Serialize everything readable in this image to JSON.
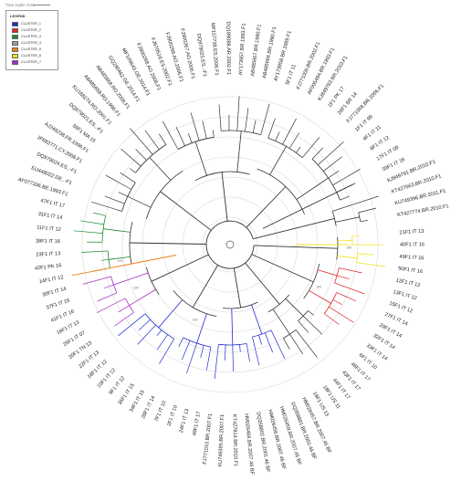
{
  "header": {
    "scale_label": "Tree scale: 0.01"
  },
  "legend": {
    "title": "LEGEND",
    "items": [
      {
        "label": "CLUSTER_1",
        "color": "#1f2ccf"
      },
      {
        "label": "CLUSTER_2",
        "color": "#e02424"
      },
      {
        "label": "CLUSTER_3",
        "color": "#1f8a2e"
      },
      {
        "label": "CLUSTER_4",
        "color": "#9a9a9a"
      },
      {
        "label": "CLUSTER_5",
        "color": "#f07f14"
      },
      {
        "label": "CLUSTER_6",
        "color": "#f2e21a"
      },
      {
        "label": "CLUSTER_7",
        "color": "#a72cc4"
      }
    ]
  },
  "tree": {
    "type": "circular-phylogeny",
    "label_orientation": "radial",
    "labels": [
      "21F1 IT 13",
      "40F1 IT 16",
      "49F1 IT 16",
      "50F1 IT 16",
      "12F1 IT 12",
      "13F1 IT 12",
      "15F1 IT 12",
      "27F1 IT 14",
      "29F1 IT 14",
      "32F1 IT 14",
      "33F1 IT 14",
      "6F1 IT 10",
      "46F1 IT 17",
      "43F1 IT 17",
      "44F1 IT 17",
      "18F1 US 11",
      "19F1 US 13",
      "HM026457.BR.2007.46 BF",
      "DQ358801.BR.2001.46 BF",
      "HM026459.BR.2007.46 BF",
      "HM026456.BR.2007.46 BF",
      "DQ358802.BR.2001.46 BF",
      "HM026458.BR.2007.46 BF",
      "KT427814.BR.2010.F1",
      "KU749395.BR.2007.F1",
      "FJ771010.BR.2007.F1",
      "48F1 IT 17",
      "24F1 IT 13",
      "2F1 IT 10",
      "7F1 IT 10",
      "28F1 IT 14",
      "34F1 IT 15",
      "35F1 IT 15",
      "9F1 IT 12",
      "10F1 IT 12",
      "18F1 IT 12",
      "22F1 IT 13",
      "20F1 TN 13",
      "25F1 IT 07",
      "16F1 IT 13",
      "41F1 IT 16",
      "37F1 IT 16",
      "30F1 IT 14",
      "14F1 IT 12",
      "42F1 PK 16",
      "23F1 IT 13",
      "38F1 IT 16",
      "11F1 IT 12",
      "31F1 IT 14",
      "47F1 IT 17",
      "AF077336.BE.1993.F1",
      "EU448022.DE..-F1",
      "DQ979024.ES..-F1",
      "JF682771.CY.2008.F1",
      "AJ249238.FR.1996.F1",
      "36F1 MA 15",
      "DQ979021.ES..-F1",
      "KU168274.RO.2001.F1",
      "AB485658.RO.1996.F1",
      "AB485668.RO.2008.F1",
      "GQ290462.GE.2014.F1",
      "MF109643.GE.2014.F1",
      "FJ900268.AO.2006.F1",
      "FJ670516.ES.2002.F1",
      "FJ900266.AO.2006.F1",
      "FJ900267.AO.2006.F1",
      "DQ979025.ES..-F1",
      "MF157738.ES.2006.F1",
      "DQ189088.AR.2002.F1",
      "AY173957.BR.1993.F1",
      "AB485667.BR.1990.F1",
      "AB485666.BR.1990.F1",
      "AY173958.BR.1989.F1",
      "5F1 IT 11",
      "FJ771006.BR.2002.F1",
      "AF005494.BR.1993.F1",
      "KJ849782.BR.2010.F1",
      "1F1 PK 17",
      "26F1 BR 14",
      "FJ771008.BR.2006.F1",
      "1F1 IT 99",
      "4F1 IT 11",
      "8F1 IT 12",
      "17F1 IT 09",
      "39F1 IT 16",
      "KJ849791.BR.2010.F1",
      "KT427663.BR.2010.F1",
      "KU749396.BR.2011.F1",
      "KT427774.BR.2010.F1"
    ],
    "bootstrap_values": [
      "100",
      "100",
      "100",
      "100",
      "100"
    ]
  }
}
